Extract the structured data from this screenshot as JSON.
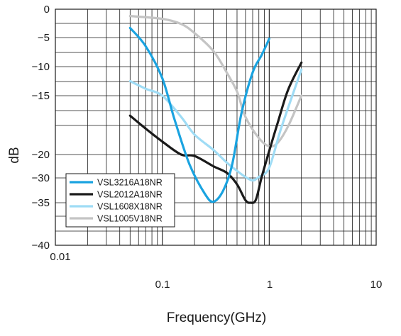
{
  "chart_data": {
    "type": "line",
    "title": "",
    "xlabel": "Frequency(GHz)",
    "ylabel": "dB",
    "x_scale": "log",
    "xlim": [
      0.01,
      10
    ],
    "x_ticks": [
      "0.01",
      "0.1",
      "1",
      "10"
    ],
    "y_ticks": [
      "0",
      "−5",
      "−10",
      "−15",
      "−20",
      "−30",
      "−35",
      "−40"
    ],
    "y_note": "The y axis is not linear: the 8 labelled values are placed at the listed grid rows; data y values are in the printed dB units.",
    "grid": true,
    "legend_position": "bottom-left",
    "series": [
      {
        "name": "VSL3216A18NR",
        "color": "#1aa3e0",
        "points": [
          [
            0.05,
            -3.3
          ],
          [
            0.07,
            -6.5
          ],
          [
            0.1,
            -12
          ],
          [
            0.13,
            -17
          ],
          [
            0.18,
            -24.3
          ],
          [
            0.25,
            -33.2
          ],
          [
            0.3,
            -34.8
          ],
          [
            0.37,
            -32.6
          ],
          [
            0.45,
            -24.3
          ],
          [
            0.55,
            -16.5
          ],
          [
            0.7,
            -11
          ],
          [
            0.85,
            -8
          ],
          [
            1.0,
            -5.2
          ]
        ]
      },
      {
        "name": "VSL2012A18NR",
        "color": "#1a1a1a",
        "points": [
          [
            0.05,
            -16.7
          ],
          [
            0.07,
            -17.8
          ],
          [
            0.1,
            -18.9
          ],
          [
            0.15,
            -20
          ],
          [
            0.2,
            -20.6
          ],
          [
            0.3,
            -25
          ],
          [
            0.4,
            -27.8
          ],
          [
            0.5,
            -31.3
          ],
          [
            0.6,
            -34.5
          ],
          [
            0.67,
            -35
          ],
          [
            0.75,
            -34.4
          ],
          [
            0.85,
            -29.6
          ],
          [
            1.0,
            -19.7
          ],
          [
            1.2,
            -17.3
          ],
          [
            1.5,
            -14
          ],
          [
            2.0,
            -9.3
          ]
        ]
      },
      {
        "name": "VSL1608X18NR",
        "color": "#9fdcf5",
        "points": [
          [
            0.05,
            -12.5
          ],
          [
            0.07,
            -13.8
          ],
          [
            0.1,
            -15
          ],
          [
            0.15,
            -16.8
          ],
          [
            0.2,
            -18.3
          ],
          [
            0.3,
            -19.6
          ],
          [
            0.4,
            -23.4
          ],
          [
            0.5,
            -27
          ],
          [
            0.6,
            -29.6
          ],
          [
            0.7,
            -30.5
          ],
          [
            0.8,
            -29.6
          ],
          [
            1.0,
            -25.6
          ],
          [
            1.3,
            -17.7
          ],
          [
            2.0,
            -10.5
          ]
        ]
      },
      {
        "name": "VSL1005V18NR",
        "color": "#c4c4c4",
        "points": [
          [
            0.05,
            -1.2
          ],
          [
            0.1,
            -1.7
          ],
          [
            0.15,
            -2.6
          ],
          [
            0.2,
            -4.2
          ],
          [
            0.3,
            -7.3
          ],
          [
            0.4,
            -11
          ],
          [
            0.5,
            -14.3
          ],
          [
            0.6,
            -16.8
          ],
          [
            0.8,
            -18.6
          ],
          [
            1.0,
            -19.3
          ],
          [
            1.2,
            -19
          ],
          [
            1.5,
            -17.6
          ],
          [
            2.0,
            -15
          ]
        ]
      }
    ]
  }
}
